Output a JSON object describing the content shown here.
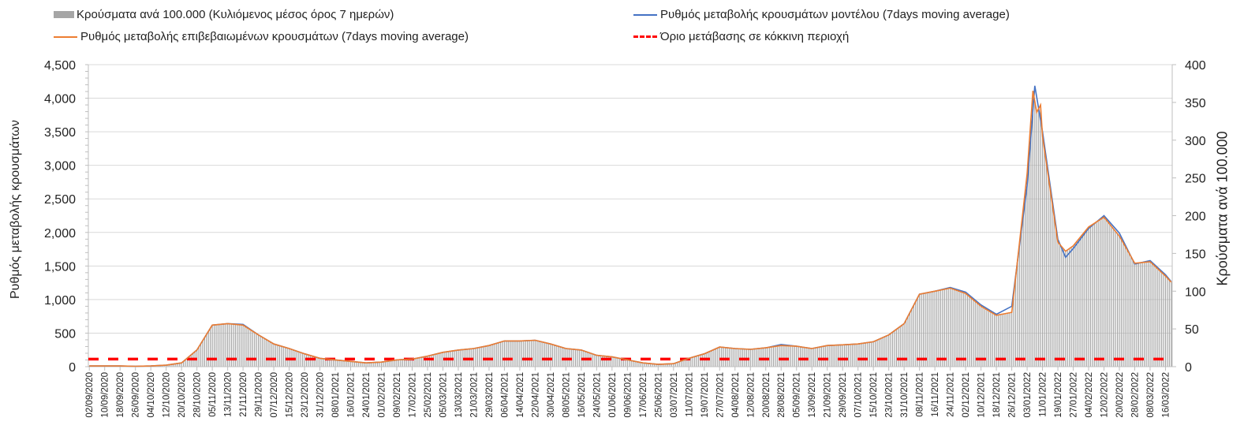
{
  "chart_data": {
    "type": "bar+line",
    "legend": {
      "placement": "top",
      "bars": "Κρούσματα ανά 100.000 (Κυλιόμενος μέσος όρος 7 ημερών)",
      "model": "Ρυθμός μεταβολής κρουσμάτων μοντέλου (7days moving average)",
      "confirmed": "Ρυθμός μεταβολής επιβεβαιωμένων κρουσμάτων (7days moving average)",
      "threshold": "Όριο μετάβασης σε κόκκινη περιοχή"
    },
    "ylabel_left": "Ρυθμός μεταβολής κρουσμάτων",
    "ylabel_right": "Κρούσματα ανά 100.000",
    "ylim_left": [
      0,
      4500
    ],
    "ylim_right": [
      0,
      400
    ],
    "yticks_left": [
      "0",
      "500",
      "1,000",
      "1,500",
      "2,000",
      "2,500",
      "3,000",
      "3,500",
      "4,000",
      "4,500"
    ],
    "yticks_right": [
      "0",
      "50",
      "100",
      "150",
      "200",
      "250",
      "300",
      "350",
      "400"
    ],
    "total_days": 564,
    "tick_step_days": 8,
    "x_ticks": [
      "02/09/2020",
      "10/09/2020",
      "18/09/2020",
      "26/09/2020",
      "04/10/2020",
      "12/10/2020",
      "20/10/2020",
      "28/10/2020",
      "05/11/2020",
      "13/11/2020",
      "21/11/2020",
      "29/11/2020",
      "07/12/2020",
      "15/12/2020",
      "23/12/2020",
      "31/12/2020",
      "08/01/2021",
      "16/01/2021",
      "24/01/2021",
      "01/02/2021",
      "09/02/2021",
      "17/02/2021",
      "25/02/2021",
      "05/03/2021",
      "13/03/2021",
      "21/03/2021",
      "29/03/2021",
      "06/04/2021",
      "14/04/2021",
      "22/04/2021",
      "30/04/2021",
      "08/05/2021",
      "16/05/2021",
      "24/05/2021",
      "01/06/2021",
      "09/06/2021",
      "17/06/2021",
      "25/06/2021",
      "03/07/2021",
      "11/07/2021",
      "19/07/2021",
      "27/07/2021",
      "04/08/2021",
      "12/08/2021",
      "20/08/2021",
      "28/08/2021",
      "05/09/2021",
      "13/09/2021",
      "21/09/2021",
      "29/09/2021",
      "07/10/2021",
      "15/10/2021",
      "23/10/2021",
      "31/10/2021",
      "08/11/2021",
      "16/11/2021",
      "24/11/2021",
      "02/12/2021",
      "10/12/2021",
      "18/12/2021",
      "26/12/2021",
      "03/01/2022",
      "11/01/2022",
      "19/01/2022",
      "27/01/2022",
      "04/02/2022",
      "12/02/2022",
      "20/02/2022",
      "28/02/2022",
      "08/03/2022",
      "16/03/2022"
    ],
    "bars_per_100k": [
      [
        0,
        1
      ],
      [
        8,
        1
      ],
      [
        16,
        1
      ],
      [
        24,
        0.5
      ],
      [
        32,
        1
      ],
      [
        40,
        2
      ],
      [
        48,
        5
      ],
      [
        56,
        22
      ],
      [
        64,
        55
      ],
      [
        72,
        57
      ],
      [
        80,
        55
      ],
      [
        88,
        42
      ],
      [
        96,
        30
      ],
      [
        104,
        24
      ],
      [
        112,
        17
      ],
      [
        120,
        11
      ],
      [
        128,
        9
      ],
      [
        136,
        7
      ],
      [
        144,
        5
      ],
      [
        152,
        6
      ],
      [
        160,
        9
      ],
      [
        168,
        10
      ],
      [
        176,
        14
      ],
      [
        184,
        19
      ],
      [
        192,
        22
      ],
      [
        200,
        24
      ],
      [
        208,
        28
      ],
      [
        216,
        34
      ],
      [
        224,
        34
      ],
      [
        232,
        35
      ],
      [
        240,
        30
      ],
      [
        248,
        24
      ],
      [
        256,
        22
      ],
      [
        264,
        15
      ],
      [
        272,
        13
      ],
      [
        280,
        9
      ],
      [
        288,
        5
      ],
      [
        296,
        3
      ],
      [
        304,
        4
      ],
      [
        312,
        11
      ],
      [
        320,
        17
      ],
      [
        328,
        26
      ],
      [
        336,
        24
      ],
      [
        344,
        23
      ],
      [
        352,
        25
      ],
      [
        360,
        28
      ],
      [
        368,
        27
      ],
      [
        376,
        24
      ],
      [
        384,
        28
      ],
      [
        392,
        29
      ],
      [
        400,
        30
      ],
      [
        408,
        33
      ],
      [
        416,
        42
      ],
      [
        424,
        57
      ],
      [
        432,
        96
      ],
      [
        440,
        100
      ],
      [
        448,
        104
      ],
      [
        456,
        97
      ],
      [
        464,
        80
      ],
      [
        472,
        68
      ],
      [
        480,
        72
      ],
      [
        488,
        256
      ],
      [
        491,
        365
      ],
      [
        493,
        337
      ],
      [
        495,
        347
      ],
      [
        496,
        305
      ],
      [
        504,
        165
      ],
      [
        508,
        153
      ],
      [
        512,
        160
      ],
      [
        520,
        185
      ],
      [
        528,
        198
      ],
      [
        536,
        173
      ],
      [
        544,
        137
      ],
      [
        552,
        139
      ],
      [
        560,
        120
      ],
      [
        563,
        112
      ]
    ],
    "confirmed_line": [
      [
        0,
        11
      ],
      [
        8,
        11
      ],
      [
        16,
        11
      ],
      [
        24,
        6
      ],
      [
        32,
        11
      ],
      [
        40,
        22
      ],
      [
        48,
        56
      ],
      [
        56,
        248
      ],
      [
        64,
        619
      ],
      [
        72,
        641
      ],
      [
        80,
        619
      ],
      [
        88,
        473
      ],
      [
        96,
        338
      ],
      [
        104,
        270
      ],
      [
        112,
        191
      ],
      [
        120,
        124
      ],
      [
        128,
        101
      ],
      [
        136,
        79
      ],
      [
        144,
        56
      ],
      [
        152,
        68
      ],
      [
        160,
        101
      ],
      [
        168,
        113
      ],
      [
        176,
        158
      ],
      [
        184,
        214
      ],
      [
        192,
        248
      ],
      [
        200,
        270
      ],
      [
        208,
        315
      ],
      [
        216,
        383
      ],
      [
        224,
        383
      ],
      [
        232,
        394
      ],
      [
        240,
        338
      ],
      [
        248,
        270
      ],
      [
        256,
        248
      ],
      [
        264,
        169
      ],
      [
        272,
        146
      ],
      [
        280,
        101
      ],
      [
        288,
        56
      ],
      [
        296,
        34
      ],
      [
        304,
        45
      ],
      [
        312,
        124
      ],
      [
        320,
        191
      ],
      [
        328,
        293
      ],
      [
        336,
        270
      ],
      [
        344,
        259
      ],
      [
        352,
        281
      ],
      [
        360,
        315
      ],
      [
        368,
        304
      ],
      [
        376,
        270
      ],
      [
        384,
        315
      ],
      [
        392,
        326
      ],
      [
        400,
        338
      ],
      [
        408,
        371
      ],
      [
        416,
        473
      ],
      [
        424,
        641
      ],
      [
        432,
        1080
      ],
      [
        440,
        1125
      ],
      [
        448,
        1170
      ],
      [
        456,
        1091
      ],
      [
        464,
        900
      ],
      [
        472,
        765
      ],
      [
        480,
        810
      ],
      [
        488,
        2880
      ],
      [
        491,
        4110
      ],
      [
        493,
        3790
      ],
      [
        495,
        3900
      ],
      [
        496,
        3430
      ],
      [
        504,
        1856
      ],
      [
        508,
        1720
      ],
      [
        512,
        1800
      ],
      [
        520,
        2081
      ],
      [
        528,
        2228
      ],
      [
        536,
        1946
      ],
      [
        544,
        1541
      ],
      [
        552,
        1564
      ],
      [
        560,
        1350
      ],
      [
        563,
        1260
      ]
    ],
    "model_line": [
      [
        0,
        11
      ],
      [
        8,
        11
      ],
      [
        16,
        11
      ],
      [
        24,
        6
      ],
      [
        32,
        11
      ],
      [
        40,
        22
      ],
      [
        48,
        56
      ],
      [
        56,
        248
      ],
      [
        64,
        619
      ],
      [
        72,
        641
      ],
      [
        80,
        630
      ],
      [
        88,
        473
      ],
      [
        96,
        338
      ],
      [
        104,
        270
      ],
      [
        112,
        191
      ],
      [
        120,
        124
      ],
      [
        128,
        101
      ],
      [
        136,
        79
      ],
      [
        144,
        56
      ],
      [
        152,
        68
      ],
      [
        160,
        101
      ],
      [
        168,
        113
      ],
      [
        176,
        158
      ],
      [
        184,
        214
      ],
      [
        192,
        248
      ],
      [
        200,
        270
      ],
      [
        208,
        315
      ],
      [
        216,
        383
      ],
      [
        224,
        383
      ],
      [
        232,
        394
      ],
      [
        240,
        338
      ],
      [
        248,
        270
      ],
      [
        256,
        248
      ],
      [
        264,
        169
      ],
      [
        272,
        146
      ],
      [
        280,
        101
      ],
      [
        288,
        56
      ],
      [
        296,
        34
      ],
      [
        304,
        45
      ],
      [
        312,
        124
      ],
      [
        320,
        191
      ],
      [
        328,
        293
      ],
      [
        336,
        270
      ],
      [
        344,
        259
      ],
      [
        352,
        281
      ],
      [
        360,
        330
      ],
      [
        368,
        304
      ],
      [
        376,
        270
      ],
      [
        384,
        315
      ],
      [
        392,
        326
      ],
      [
        400,
        338
      ],
      [
        408,
        371
      ],
      [
        416,
        473
      ],
      [
        424,
        641
      ],
      [
        432,
        1080
      ],
      [
        440,
        1125
      ],
      [
        448,
        1180
      ],
      [
        456,
        1110
      ],
      [
        464,
        920
      ],
      [
        472,
        780
      ],
      [
        480,
        900
      ],
      [
        488,
        2700
      ],
      [
        492,
        4185
      ],
      [
        496,
        3500
      ],
      [
        504,
        1900
      ],
      [
        508,
        1630
      ],
      [
        512,
        1760
      ],
      [
        520,
        2060
      ],
      [
        528,
        2250
      ],
      [
        536,
        1990
      ],
      [
        544,
        1530
      ],
      [
        552,
        1580
      ],
      [
        560,
        1370
      ],
      [
        563,
        1265
      ]
    ],
    "threshold_right": 10,
    "colors": {
      "bars": "#a6a6a6",
      "model": "#4472c4",
      "confirmed": "#ed7d31",
      "threshold": "#ff0000",
      "grid": "#d9d9d9"
    }
  }
}
